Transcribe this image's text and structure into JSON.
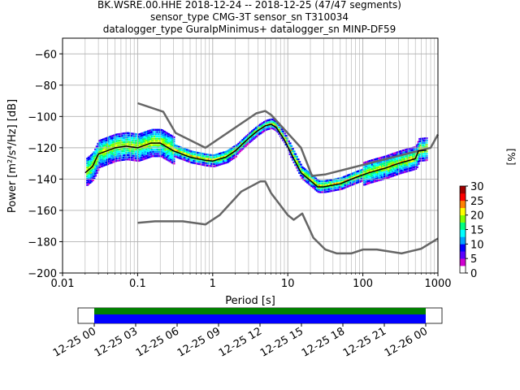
{
  "title_lines": [
    "BK.WSRE.00.HHE   2018-12-24 -- 2018-12-25  (47/47 segments)",
    "sensor_type CMG-3T sensor_sn T310034",
    "datalogger_type GuralpMinimus+ datalogger_sn MINP-DF59"
  ],
  "colorbar": {
    "label": "[%]",
    "ticks": [
      "0",
      "5",
      "10",
      "15",
      "20",
      "25",
      "30"
    ],
    "range": [
      0,
      30
    ],
    "colors": [
      "#ffffff",
      "#d000d0",
      "#5a00ff",
      "#0000ff",
      "#00a0ff",
      "#00ffff",
      "#00ff80",
      "#80ff00",
      "#ffff00",
      "#ff8000",
      "#ff0000",
      "#a00000"
    ]
  },
  "timeline": {
    "ticks": [
      "12-25 00",
      "12-25 03",
      "12-25 06",
      "12-25 09",
      "12-25 12",
      "12-25 15",
      "12-25 18",
      "12-25 21",
      "12-26 00"
    ],
    "coverage_color": "#008000",
    "data_color": "#0000ff"
  },
  "chart_data": {
    "type": "line",
    "title": "BK.WSRE.00.HHE   2018-12-24 -- 2018-12-25  (47/47 segments)",
    "xlabel": "Period [s]",
    "ylabel": "Power [m²/s⁴/Hz] [dB]",
    "xscale": "log",
    "xlim": [
      0.01,
      1000
    ],
    "ylim": [
      -200,
      -50
    ],
    "xticks": [
      "0.01",
      "0.1",
      "1",
      "10",
      "100",
      "1000"
    ],
    "yticks": [
      "−200",
      "−180",
      "−160",
      "−140",
      "−120",
      "−100",
      "−80",
      "−60"
    ],
    "grid": true,
    "series": [
      {
        "color": "#666666",
        "points": [
          [
            0.1,
            -91.5
          ],
          [
            0.22,
            -97
          ],
          [
            0.32,
            -110.5
          ],
          [
            0.8,
            -120
          ],
          [
            3.8,
            -98
          ],
          [
            5,
            -96.5
          ],
          [
            6,
            -99
          ],
          [
            15,
            -120
          ],
          [
            21,
            -138
          ],
          [
            32,
            -137
          ],
          [
            800,
            -120
          ],
          [
            1000,
            -111.5
          ]
        ]
      },
      {
        "color": "#666666",
        "points": [
          [
            0.1,
            -168
          ],
          [
            0.17,
            -167
          ],
          [
            0.4,
            -167
          ],
          [
            0.8,
            -169
          ],
          [
            1.24,
            -163
          ],
          [
            2.4,
            -148
          ],
          [
            4.3,
            -141.5
          ],
          [
            5,
            -141.5
          ],
          [
            6,
            -149
          ],
          [
            10,
            -163
          ],
          [
            12,
            -166
          ],
          [
            15.6,
            -162
          ],
          [
            21.9,
            -177.5
          ],
          [
            31.6,
            -185
          ],
          [
            45,
            -187.5
          ],
          [
            70,
            -187.5
          ],
          [
            101,
            -185
          ],
          [
            154,
            -185
          ],
          [
            328,
            -187.5
          ],
          [
            600,
            -184.5
          ],
          [
            1000,
            -178
          ]
        ]
      },
      {
        "color": "#000000",
        "points": [
          [
            0.02,
            -136
          ],
          [
            0.025,
            -132
          ],
          [
            0.03,
            -124
          ],
          [
            0.05,
            -120
          ],
          [
            0.07,
            -119
          ],
          [
            0.1,
            -120
          ],
          [
            0.15,
            -117
          ],
          [
            0.2,
            -117
          ],
          [
            0.3,
            -122
          ],
          [
            0.5,
            -126
          ],
          [
            0.8,
            -128
          ],
          [
            1,
            -128.5
          ],
          [
            1.5,
            -126
          ],
          [
            2,
            -122
          ],
          [
            3,
            -114
          ],
          [
            4,
            -109
          ],
          [
            5,
            -106
          ],
          [
            6,
            -105
          ],
          [
            7,
            -107
          ],
          [
            9,
            -115
          ],
          [
            12,
            -127
          ],
          [
            15,
            -136
          ],
          [
            20,
            -141
          ],
          [
            25,
            -145
          ],
          [
            30,
            -145
          ],
          [
            50,
            -143
          ],
          [
            80,
            -139
          ],
          [
            120,
            -136
          ],
          [
            200,
            -133
          ],
          [
            300,
            -130
          ],
          [
            500,
            -127
          ],
          [
            550,
            -122
          ],
          [
            700,
            -121.5
          ]
        ]
      }
    ]
  }
}
